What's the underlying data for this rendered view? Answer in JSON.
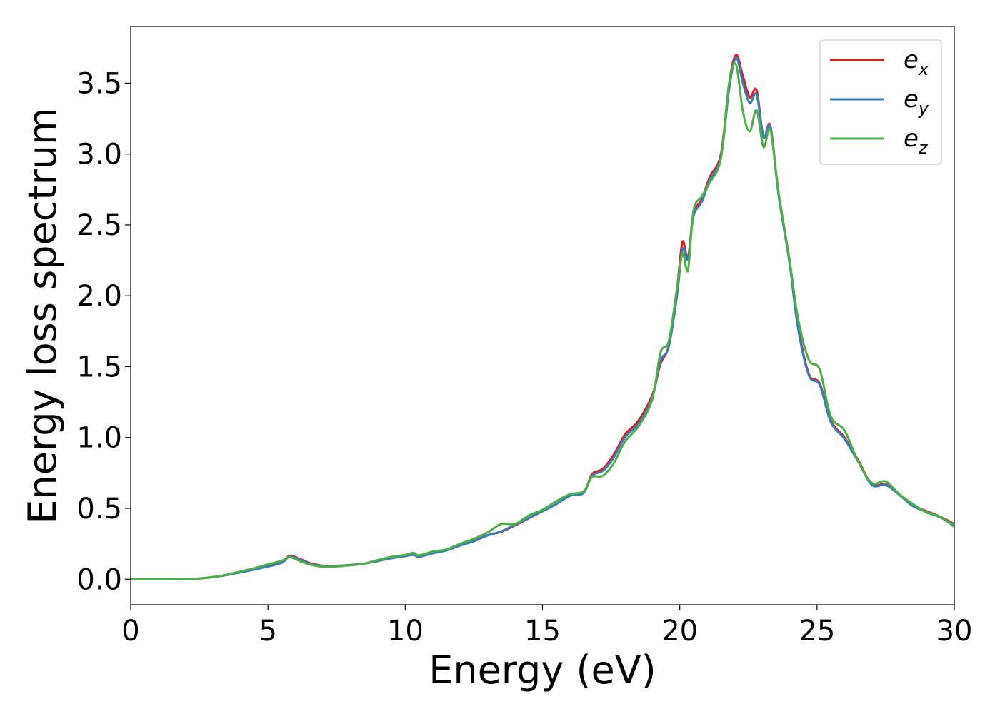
{
  "chart_data": {
    "type": "line",
    "title": "",
    "xlabel": "Energy (eV)",
    "ylabel": "Energy loss spectrum",
    "xlim": [
      0,
      30
    ],
    "ylim": [
      -0.18,
      3.9
    ],
    "xticks": [
      0,
      5,
      10,
      15,
      20,
      25,
      30
    ],
    "xtick_labels": [
      "0",
      "5",
      "10",
      "15",
      "20",
      "25",
      "30"
    ],
    "yticks": [
      0.0,
      0.5,
      1.0,
      1.5,
      2.0,
      2.5,
      3.0,
      3.5
    ],
    "ytick_labels": [
      "0.0",
      "0.5",
      "1.0",
      "1.5",
      "2.0",
      "2.5",
      "3.0",
      "3.5"
    ],
    "grid": false,
    "legend_position": "top-right",
    "series": [
      {
        "name": "e_x",
        "label_base": "e",
        "label_sub": "x",
        "color": "#e41a1c",
        "points": [
          [
            0,
            0.0
          ],
          [
            1,
            0.0
          ],
          [
            2,
            0.0
          ],
          [
            2.5,
            0.005
          ],
          [
            3,
            0.015
          ],
          [
            3.5,
            0.03
          ],
          [
            4,
            0.05
          ],
          [
            4.5,
            0.07
          ],
          [
            5,
            0.095
          ],
          [
            5.5,
            0.12
          ],
          [
            5.8,
            0.165
          ],
          [
            6.2,
            0.14
          ],
          [
            6.5,
            0.115
          ],
          [
            7,
            0.095
          ],
          [
            7.5,
            0.095
          ],
          [
            8,
            0.1
          ],
          [
            8.5,
            0.11
          ],
          [
            9,
            0.13
          ],
          [
            9.5,
            0.15
          ],
          [
            10,
            0.165
          ],
          [
            10.3,
            0.175
          ],
          [
            10.5,
            0.16
          ],
          [
            11,
            0.185
          ],
          [
            11.5,
            0.205
          ],
          [
            12,
            0.24
          ],
          [
            12.5,
            0.27
          ],
          [
            13,
            0.31
          ],
          [
            13.5,
            0.335
          ],
          [
            14,
            0.38
          ],
          [
            14.5,
            0.43
          ],
          [
            15,
            0.48
          ],
          [
            15.5,
            0.53
          ],
          [
            16,
            0.59
          ],
          [
            16.5,
            0.61
          ],
          [
            16.8,
            0.74
          ],
          [
            17.2,
            0.78
          ],
          [
            17.6,
            0.88
          ],
          [
            18,
            1.02
          ],
          [
            18.5,
            1.12
          ],
          [
            19,
            1.3
          ],
          [
            19.3,
            1.52
          ],
          [
            19.6,
            1.65
          ],
          [
            19.9,
            2.05
          ],
          [
            20.1,
            2.38
          ],
          [
            20.3,
            2.27
          ],
          [
            20.5,
            2.58
          ],
          [
            20.8,
            2.68
          ],
          [
            21.1,
            2.84
          ],
          [
            21.5,
            3.0
          ],
          [
            21.8,
            3.5
          ],
          [
            22.05,
            3.7
          ],
          [
            22.3,
            3.55
          ],
          [
            22.55,
            3.4
          ],
          [
            22.8,
            3.45
          ],
          [
            23.05,
            3.12
          ],
          [
            23.3,
            3.2
          ],
          [
            23.6,
            2.72
          ],
          [
            24,
            2.25
          ],
          [
            24.3,
            1.8
          ],
          [
            24.7,
            1.45
          ],
          [
            25.1,
            1.38
          ],
          [
            25.5,
            1.12
          ],
          [
            26,
            1.0
          ],
          [
            26.5,
            0.84
          ],
          [
            27,
            0.67
          ],
          [
            27.5,
            0.67
          ],
          [
            28,
            0.6
          ],
          [
            28.5,
            0.52
          ],
          [
            29,
            0.48
          ],
          [
            29.5,
            0.44
          ],
          [
            30,
            0.39
          ]
        ]
      },
      {
        "name": "e_y",
        "label_base": "e",
        "label_sub": "y",
        "color": "#377eb8",
        "points": [
          [
            0,
            0.0
          ],
          [
            1,
            0.0
          ],
          [
            2,
            0.0
          ],
          [
            2.5,
            0.005
          ],
          [
            3,
            0.015
          ],
          [
            3.5,
            0.03
          ],
          [
            4,
            0.048
          ],
          [
            4.5,
            0.068
          ],
          [
            5,
            0.09
          ],
          [
            5.5,
            0.115
          ],
          [
            5.8,
            0.16
          ],
          [
            6.2,
            0.135
          ],
          [
            6.5,
            0.11
          ],
          [
            7,
            0.092
          ],
          [
            7.5,
            0.093
          ],
          [
            8,
            0.1
          ],
          [
            8.5,
            0.11
          ],
          [
            9,
            0.128
          ],
          [
            9.5,
            0.148
          ],
          [
            10,
            0.163
          ],
          [
            10.3,
            0.172
          ],
          [
            10.5,
            0.158
          ],
          [
            11,
            0.183
          ],
          [
            11.5,
            0.203
          ],
          [
            12,
            0.238
          ],
          [
            12.5,
            0.268
          ],
          [
            13,
            0.31
          ],
          [
            13.5,
            0.338
          ],
          [
            14,
            0.385
          ],
          [
            14.5,
            0.432
          ],
          [
            15,
            0.48
          ],
          [
            15.5,
            0.53
          ],
          [
            16,
            0.588
          ],
          [
            16.5,
            0.61
          ],
          [
            16.8,
            0.73
          ],
          [
            17.2,
            0.765
          ],
          [
            17.6,
            0.86
          ],
          [
            18,
            1.0
          ],
          [
            18.5,
            1.1
          ],
          [
            19,
            1.28
          ],
          [
            19.3,
            1.54
          ],
          [
            19.6,
            1.64
          ],
          [
            19.9,
            2.0
          ],
          [
            20.1,
            2.33
          ],
          [
            20.3,
            2.26
          ],
          [
            20.5,
            2.56
          ],
          [
            20.8,
            2.66
          ],
          [
            21.1,
            2.82
          ],
          [
            21.5,
            2.98
          ],
          [
            21.8,
            3.46
          ],
          [
            22.05,
            3.68
          ],
          [
            22.3,
            3.5
          ],
          [
            22.55,
            3.36
          ],
          [
            22.8,
            3.42
          ],
          [
            23.05,
            3.12
          ],
          [
            23.3,
            3.19
          ],
          [
            23.6,
            2.71
          ],
          [
            24,
            2.23
          ],
          [
            24.3,
            1.78
          ],
          [
            24.7,
            1.44
          ],
          [
            25.1,
            1.37
          ],
          [
            25.5,
            1.11
          ],
          [
            26,
            0.99
          ],
          [
            26.5,
            0.83
          ],
          [
            27,
            0.665
          ],
          [
            27.5,
            0.665
          ],
          [
            28,
            0.595
          ],
          [
            28.5,
            0.515
          ],
          [
            29,
            0.475
          ],
          [
            29.5,
            0.435
          ],
          [
            30,
            0.385
          ]
        ]
      },
      {
        "name": "e_z",
        "label_base": "e",
        "label_sub": "z",
        "color": "#4daf4a",
        "points": [
          [
            0,
            0.0
          ],
          [
            1,
            0.0
          ],
          [
            2,
            0.0
          ],
          [
            2.5,
            0.005
          ],
          [
            3,
            0.016
          ],
          [
            3.5,
            0.032
          ],
          [
            4,
            0.055
          ],
          [
            4.5,
            0.078
          ],
          [
            5,
            0.105
          ],
          [
            5.5,
            0.13
          ],
          [
            5.8,
            0.155
          ],
          [
            6.2,
            0.125
          ],
          [
            6.5,
            0.105
          ],
          [
            7,
            0.088
          ],
          [
            7.5,
            0.09
          ],
          [
            8,
            0.098
          ],
          [
            8.5,
            0.11
          ],
          [
            9,
            0.135
          ],
          [
            9.5,
            0.158
          ],
          [
            10,
            0.172
          ],
          [
            10.3,
            0.185
          ],
          [
            10.5,
            0.168
          ],
          [
            11,
            0.195
          ],
          [
            11.5,
            0.21
          ],
          [
            12,
            0.25
          ],
          [
            12.5,
            0.285
          ],
          [
            13,
            0.33
          ],
          [
            13.5,
            0.39
          ],
          [
            14,
            0.39
          ],
          [
            14.5,
            0.45
          ],
          [
            15,
            0.49
          ],
          [
            15.5,
            0.55
          ],
          [
            16,
            0.6
          ],
          [
            16.5,
            0.62
          ],
          [
            16.8,
            0.72
          ],
          [
            17.2,
            0.73
          ],
          [
            17.6,
            0.82
          ],
          [
            18,
            0.97
          ],
          [
            18.5,
            1.08
          ],
          [
            19,
            1.27
          ],
          [
            19.3,
            1.6
          ],
          [
            19.6,
            1.68
          ],
          [
            19.9,
            2.05
          ],
          [
            20.1,
            2.3
          ],
          [
            20.3,
            2.18
          ],
          [
            20.5,
            2.6
          ],
          [
            20.8,
            2.7
          ],
          [
            21.1,
            2.8
          ],
          [
            21.5,
            2.97
          ],
          [
            21.8,
            3.5
          ],
          [
            22.05,
            3.63
          ],
          [
            22.3,
            3.3
          ],
          [
            22.55,
            3.16
          ],
          [
            22.8,
            3.31
          ],
          [
            23.05,
            3.05
          ],
          [
            23.3,
            3.17
          ],
          [
            23.6,
            2.73
          ],
          [
            24,
            2.25
          ],
          [
            24.3,
            1.85
          ],
          [
            24.7,
            1.55
          ],
          [
            25.1,
            1.48
          ],
          [
            25.5,
            1.15
          ],
          [
            26,
            1.05
          ],
          [
            26.5,
            0.83
          ],
          [
            27,
            0.68
          ],
          [
            27.5,
            0.69
          ],
          [
            28,
            0.6
          ],
          [
            28.5,
            0.53
          ],
          [
            29,
            0.47
          ],
          [
            29.5,
            0.44
          ],
          [
            30,
            0.37
          ]
        ]
      }
    ]
  }
}
